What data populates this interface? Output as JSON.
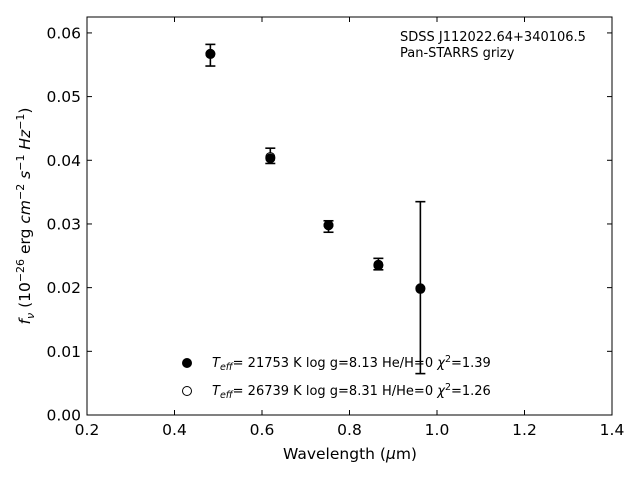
{
  "chart_data": {
    "type": "scatter",
    "title": "",
    "xlabel_text": "Wavelength (",
    "xlabel_symbol": "μ",
    "xlabel_unit": "m)",
    "ylabel_parts": {
      "f": "f",
      "nu": "ν",
      "open": " (10",
      "exp1": "−26",
      "erg": " erg ",
      "cm": "cm",
      "exp2": "−2",
      "s": " s",
      "exp3": "−1",
      "hz": " Hz",
      "exp4": "−1",
      "close": ")"
    },
    "xlim": [
      0.2,
      1.4
    ],
    "ylim": [
      0.0,
      0.0625
    ],
    "xticks": [
      "0.2",
      "0.4",
      "0.6",
      "0.8",
      "1.0",
      "1.2",
      "1.4"
    ],
    "xtick_values": [
      0.2,
      0.4,
      0.6,
      0.8,
      1.0,
      1.2,
      1.4
    ],
    "yticks": [
      "0.00",
      "0.01",
      "0.02",
      "0.03",
      "0.04",
      "0.05",
      "0.06"
    ],
    "ytick_values": [
      0.0,
      0.01,
      0.02,
      0.03,
      0.04,
      0.05,
      0.06
    ],
    "grid": false,
    "annotation": [
      "SDSS J112022.64+340106.5",
      "Pan-STARRS grizy"
    ],
    "observed": [
      {
        "x": 0.482,
        "y": 0.0565,
        "err": 0.0017
      },
      {
        "x": 0.619,
        "y": 0.0407,
        "err": 0.0012
      },
      {
        "x": 0.752,
        "y": 0.0296,
        "err": 0.0009
      },
      {
        "x": 0.866,
        "y": 0.0237,
        "err": 0.0009
      },
      {
        "x": 0.962,
        "y": 0.02,
        "err": 0.0135
      }
    ],
    "series": [
      {
        "marker": "filled",
        "points": [
          {
            "x": 0.482,
            "y": 0.0567
          },
          {
            "x": 0.619,
            "y": 0.0403
          },
          {
            "x": 0.752,
            "y": 0.0298
          },
          {
            "x": 0.866,
            "y": 0.0235
          },
          {
            "x": 0.962,
            "y": 0.0198
          }
        ]
      },
      {
        "marker": "open",
        "points": [
          {
            "x": 0.482,
            "y": 0.0567
          },
          {
            "x": 0.619,
            "y": 0.0405
          },
          {
            "x": 0.752,
            "y": 0.0298
          },
          {
            "x": 0.866,
            "y": 0.0236
          },
          {
            "x": 0.962,
            "y": 0.0199
          }
        ]
      }
    ],
    "legend_placement": "lower-center",
    "legend": [
      {
        "marker": "filled",
        "T": "T",
        "Tsub": "eff",
        "teff_value": "= 21753 K  log g=8.13  He/H=0  ",
        "chi": "χ",
        "chi_sup": "2",
        "chi_value": "=1.39"
      },
      {
        "marker": "open",
        "T": "T",
        "Tsub": "eff",
        "teff_value": "= 26739 K  log g=8.31  H/He=0  ",
        "chi": "χ",
        "chi_sup": "2",
        "chi_value": "=1.26"
      }
    ],
    "colors": {
      "marker": "#000000",
      "axes": "#000000",
      "background": "#ffffff"
    }
  }
}
